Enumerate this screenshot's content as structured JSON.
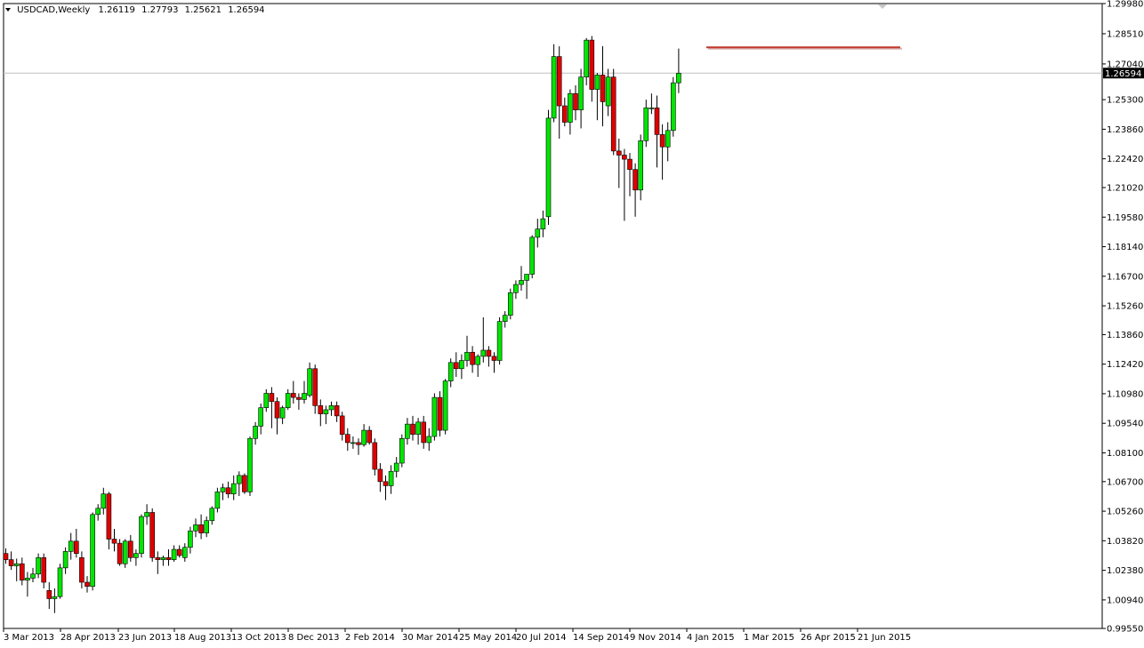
{
  "chart_data": {
    "type": "candlestick",
    "title": "USDCAD,Weekly",
    "ohlc_header": [
      "1.26119",
      "1.27793",
      "1.25621",
      "1.26594"
    ],
    "current_price_label": "1.26594",
    "current_price": 1.26594,
    "resistance_level": 1.2785,
    "ylim": [
      0.9955,
      1.2998
    ],
    "y_ticks": [
      "1.29980",
      "1.28510",
      "1.27040",
      "1.25300",
      "1.23860",
      "1.22420",
      "1.21020",
      "1.19580",
      "1.18140",
      "1.16700",
      "1.15260",
      "1.13860",
      "1.12420",
      "1.10980",
      "1.09540",
      "1.08100",
      "1.06700",
      "1.05260",
      "1.03820",
      "1.02380",
      "1.00940",
      "0.99550"
    ],
    "x_labels": [
      "3 Mar 2013",
      "28 Apr 2013",
      "23 Jun 2013",
      "18 Aug 2013",
      "13 Oct 2013",
      "8 Dec 2013",
      "2 Feb 2014",
      "30 Mar 2014",
      "25 May 2014",
      "20 Jul 2014",
      "14 Sep 2014",
      "9 Nov 2014",
      "4 Jan 2015",
      "1 Mar 2015",
      "26 Apr 2015",
      "21 Jun 2015"
    ],
    "candles": [
      [
        1.032,
        1.0345,
        1.027,
        1.029
      ],
      [
        1.029,
        1.033,
        1.024,
        1.026
      ],
      [
        1.026,
        1.0295,
        1.0185,
        1.027
      ],
      [
        1.027,
        1.03,
        1.0165,
        1.019
      ],
      [
        1.019,
        1.023,
        1.011,
        1.02
      ],
      [
        1.02,
        1.025,
        1.018,
        1.022
      ],
      [
        1.022,
        1.032,
        1.02,
        1.03
      ],
      [
        1.03,
        1.032,
        1.015,
        1.018
      ],
      [
        1.014,
        1.018,
        1.005,
        1.01
      ],
      [
        1.01,
        1.015,
        1.003,
        1.011
      ],
      [
        1.011,
        1.027,
        1.01,
        1.025
      ],
      [
        1.025,
        1.035,
        1.022,
        1.033
      ],
      [
        1.033,
        1.042,
        1.029,
        1.038
      ],
      [
        1.038,
        1.044,
        1.03,
        1.032
      ],
      [
        1.03,
        1.033,
        1.015,
        1.018
      ],
      [
        1.018,
        1.021,
        1.013,
        1.016
      ],
      [
        1.016,
        1.052,
        1.014,
        1.051
      ],
      [
        1.051,
        1.056,
        1.048,
        1.054
      ],
      [
        1.054,
        1.064,
        1.051,
        1.061
      ],
      [
        1.061,
        1.062,
        1.034,
        1.039
      ],
      [
        1.039,
        1.044,
        1.033,
        1.037
      ],
      [
        1.037,
        1.039,
        1.026,
        1.027
      ],
      [
        1.027,
        1.039,
        1.025,
        1.038
      ],
      [
        1.038,
        1.041,
        1.028,
        1.03
      ],
      [
        1.03,
        1.034,
        1.026,
        1.032
      ],
      [
        1.032,
        1.051,
        1.03,
        1.05
      ],
      [
        1.05,
        1.056,
        1.046,
        1.052
      ],
      [
        1.052,
        1.054,
        1.028,
        1.03
      ],
      [
        1.03,
        1.033,
        1.022,
        1.029
      ],
      [
        1.029,
        1.031,
        1.026,
        1.03
      ],
      [
        1.03,
        1.034,
        1.026,
        1.029
      ],
      [
        1.029,
        1.036,
        1.028,
        1.034
      ],
      [
        1.034,
        1.036,
        1.03,
        1.031
      ],
      [
        1.03,
        1.037,
        1.028,
        1.035
      ],
      [
        1.035,
        1.045,
        1.032,
        1.043
      ],
      [
        1.043,
        1.049,
        1.04,
        1.046
      ],
      [
        1.046,
        1.051,
        1.039,
        1.042
      ],
      [
        1.042,
        1.05,
        1.04,
        1.048
      ],
      [
        1.048,
        1.055,
        1.046,
        1.054
      ],
      [
        1.054,
        1.064,
        1.052,
        1.062
      ],
      [
        1.062,
        1.066,
        1.058,
        1.064
      ],
      [
        1.064,
        1.067,
        1.059,
        1.061
      ],
      [
        1.061,
        1.07,
        1.058,
        1.066
      ],
      [
        1.066,
        1.072,
        1.06,
        1.07
      ],
      [
        1.07,
        1.071,
        1.061,
        1.062
      ],
      [
        1.062,
        1.089,
        1.06,
        1.088
      ],
      [
        1.088,
        1.096,
        1.085,
        1.094
      ],
      [
        1.094,
        1.105,
        1.09,
        1.103
      ],
      [
        1.103,
        1.112,
        1.101,
        1.11
      ],
      [
        1.11,
        1.113,
        1.093,
        1.106
      ],
      [
        1.106,
        1.108,
        1.09,
        1.098
      ],
      [
        1.098,
        1.104,
        1.095,
        1.103
      ],
      [
        1.103,
        1.112,
        1.102,
        1.11
      ],
      [
        1.11,
        1.116,
        1.105,
        1.108
      ],
      [
        1.108,
        1.11,
        1.102,
        1.107
      ],
      [
        1.107,
        1.116,
        1.105,
        1.11
      ],
      [
        1.109,
        1.125,
        1.108,
        1.122
      ],
      [
        1.122,
        1.124,
        1.1,
        1.104
      ],
      [
        1.104,
        1.107,
        1.094,
        1.1
      ],
      [
        1.1,
        1.104,
        1.095,
        1.102
      ],
      [
        1.102,
        1.106,
        1.099,
        1.104
      ],
      [
        1.104,
        1.106,
        1.096,
        1.099
      ],
      [
        1.099,
        1.101,
        1.087,
        1.09
      ],
      [
        1.09,
        1.093,
        1.082,
        1.086
      ],
      [
        1.086,
        1.089,
        1.083,
        1.086
      ],
      [
        1.086,
        1.088,
        1.08,
        1.085
      ],
      [
        1.085,
        1.095,
        1.084,
        1.092
      ],
      [
        1.092,
        1.094,
        1.085,
        1.086
      ],
      [
        1.086,
        1.088,
        1.07,
        1.073
      ],
      [
        1.073,
        1.076,
        1.062,
        1.067
      ],
      [
        1.067,
        1.07,
        1.058,
        1.065
      ],
      [
        1.065,
        1.075,
        1.061,
        1.072
      ],
      [
        1.072,
        1.079,
        1.069,
        1.076
      ],
      [
        1.076,
        1.09,
        1.074,
        1.088
      ],
      [
        1.088,
        1.098,
        1.085,
        1.095
      ],
      [
        1.095,
        1.099,
        1.087,
        1.09
      ],
      [
        1.09,
        1.098,
        1.085,
        1.096
      ],
      [
        1.096,
        1.099,
        1.083,
        1.086
      ],
      [
        1.086,
        1.093,
        1.082,
        1.089
      ],
      [
        1.089,
        1.11,
        1.087,
        1.108
      ],
      [
        1.108,
        1.111,
        1.089,
        1.092
      ],
      [
        1.092,
        1.117,
        1.09,
        1.116
      ],
      [
        1.116,
        1.127,
        1.113,
        1.125
      ],
      [
        1.125,
        1.13,
        1.118,
        1.122
      ],
      [
        1.122,
        1.129,
        1.117,
        1.126
      ],
      [
        1.126,
        1.138,
        1.123,
        1.13
      ],
      [
        1.13,
        1.133,
        1.12,
        1.124
      ],
      [
        1.124,
        1.129,
        1.118,
        1.128
      ],
      [
        1.128,
        1.147,
        1.125,
        1.131
      ],
      [
        1.131,
        1.133,
        1.123,
        1.128
      ],
      [
        1.128,
        1.13,
        1.12,
        1.126
      ],
      [
        1.126,
        1.147,
        1.124,
        1.145
      ],
      [
        1.145,
        1.15,
        1.142,
        1.148
      ],
      [
        1.148,
        1.161,
        1.146,
        1.159
      ],
      [
        1.159,
        1.165,
        1.156,
        1.163
      ],
      [
        1.163,
        1.172,
        1.16,
        1.165
      ],
      [
        1.165,
        1.168,
        1.156,
        1.168
      ],
      [
        1.168,
        1.187,
        1.166,
        1.186
      ],
      [
        1.186,
        1.195,
        1.181,
        1.19
      ],
      [
        1.19,
        1.199,
        1.186,
        1.195
      ],
      [
        1.196,
        1.248,
        1.192,
        1.244
      ],
      [
        1.244,
        1.28,
        1.242,
        1.274
      ],
      [
        1.274,
        1.279,
        1.234,
        1.25
      ],
      [
        1.25,
        1.254,
        1.24,
        1.242
      ],
      [
        1.242,
        1.258,
        1.236,
        1.256
      ],
      [
        1.256,
        1.26,
        1.243,
        1.248
      ],
      [
        1.248,
        1.268,
        1.239,
        1.264
      ],
      [
        1.264,
        1.283,
        1.26,
        1.282
      ],
      [
        1.282,
        1.284,
        1.252,
        1.258
      ],
      [
        1.258,
        1.266,
        1.243,
        1.265
      ],
      [
        1.265,
        1.279,
        1.24,
        1.252
      ],
      [
        1.25,
        1.268,
        1.245,
        1.264
      ],
      [
        1.264,
        1.268,
        1.226,
        1.228
      ],
      [
        1.228,
        1.234,
        1.21,
        1.226
      ],
      [
        1.226,
        1.229,
        1.194,
        1.224
      ],
      [
        1.224,
        1.227,
        1.206,
        1.219
      ],
      [
        1.219,
        1.222,
        1.196,
        1.209
      ],
      [
        1.209,
        1.236,
        1.204,
        1.233
      ],
      [
        1.233,
        1.253,
        1.23,
        1.249
      ],
      [
        1.249,
        1.256,
        1.246,
        1.249
      ],
      [
        1.249,
        1.255,
        1.22,
        1.236
      ],
      [
        1.236,
        1.241,
        1.214,
        1.23
      ],
      [
        1.23,
        1.242,
        1.223,
        1.238
      ],
      [
        1.238,
        1.264,
        1.235,
        1.2612
      ],
      [
        1.2612,
        1.2779,
        1.2562,
        1.2659
      ]
    ]
  }
}
